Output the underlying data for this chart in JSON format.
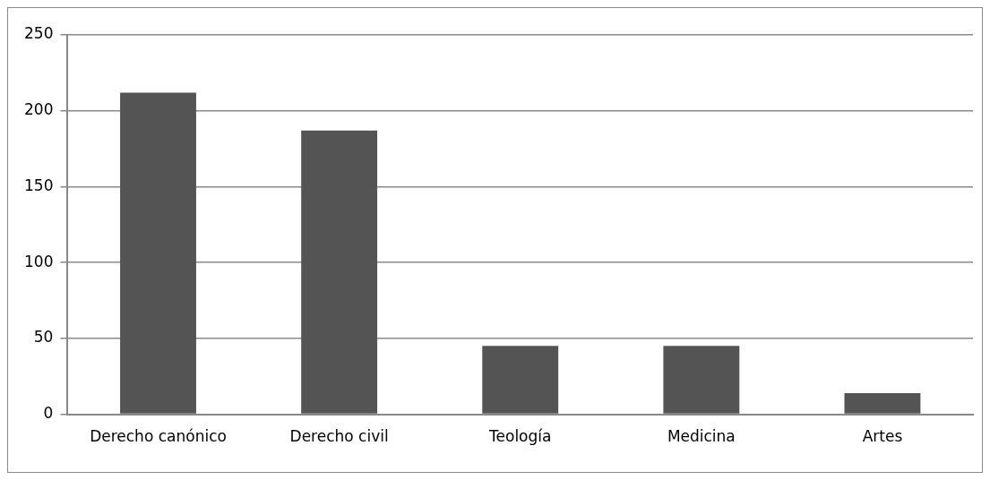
{
  "chart_data": {
    "type": "bar",
    "categories": [
      "Derecho canónico",
      "Derecho civil",
      "Teología",
      "Medicina",
      "Artes"
    ],
    "values": [
      212,
      187,
      45,
      45,
      14
    ],
    "color": "#545454",
    "ylim": [
      0,
      250
    ],
    "yticks": [
      0,
      50,
      100,
      150,
      200,
      250
    ],
    "grid": "y",
    "legend": false
  }
}
